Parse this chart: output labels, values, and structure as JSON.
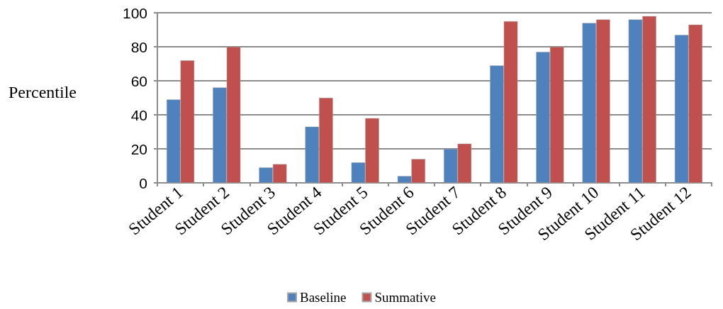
{
  "chart_data": {
    "type": "bar",
    "ylabel": "Percentile",
    "categories": [
      "Student 1",
      "Student 2",
      "Student 3",
      "Student 4",
      "Student 5",
      "Student 6",
      "Student 7",
      "Student 8",
      "Student 9",
      "Student 10",
      "Student 11",
      "Student 12"
    ],
    "series": [
      {
        "name": "Baseline",
        "color": "#4f81bd",
        "values": [
          49,
          56,
          9,
          33,
          12,
          4,
          20,
          69,
          77,
          94,
          96,
          87
        ]
      },
      {
        "name": "Summative",
        "color": "#c0504d",
        "values": [
          72,
          80,
          11,
          50,
          38,
          14,
          23,
          95,
          80,
          96,
          98,
          93
        ]
      }
    ],
    "ylim": [
      0,
      100
    ],
    "yticks": [
      0,
      20,
      40,
      60,
      80,
      100
    ],
    "grid": "y",
    "legend": "bottom"
  }
}
